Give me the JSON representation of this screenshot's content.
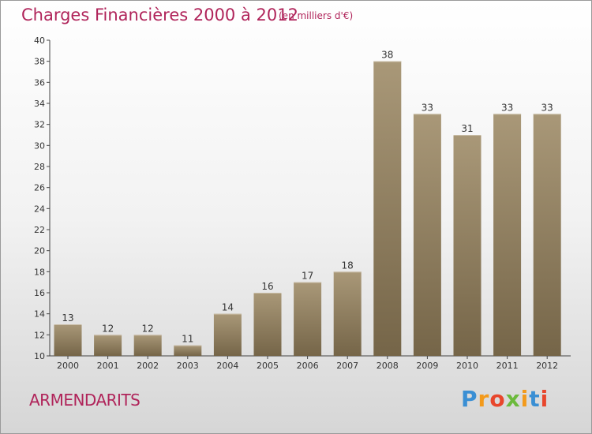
{
  "title": "Charges Financières 2000 à 2012",
  "subtitle": "(en milliers d'€)",
  "commune": "ARMENDARITS",
  "logo": "Proxiti",
  "colors": {
    "title": "#b0245a",
    "bar_light": "#a99878",
    "bar_dark": "#756548",
    "logo": [
      "#3a8fd4",
      "#f39a1b",
      "#e8462c",
      "#6cba3c",
      "#f39a1b",
      "#3a8fd4",
      "#e8462c"
    ]
  },
  "chart_data": {
    "type": "bar",
    "categories": [
      "2000",
      "2001",
      "2002",
      "2003",
      "2004",
      "2005",
      "2006",
      "2007",
      "2008",
      "2009",
      "2010",
      "2011",
      "2012"
    ],
    "values": [
      13,
      12,
      12,
      11,
      14,
      16,
      17,
      18,
      38,
      33,
      31,
      33,
      33
    ],
    "ylim": [
      10,
      40
    ],
    "yticks": [
      10,
      12,
      14,
      16,
      18,
      20,
      22,
      24,
      26,
      28,
      30,
      32,
      34,
      36,
      38,
      40
    ],
    "grid": false
  }
}
